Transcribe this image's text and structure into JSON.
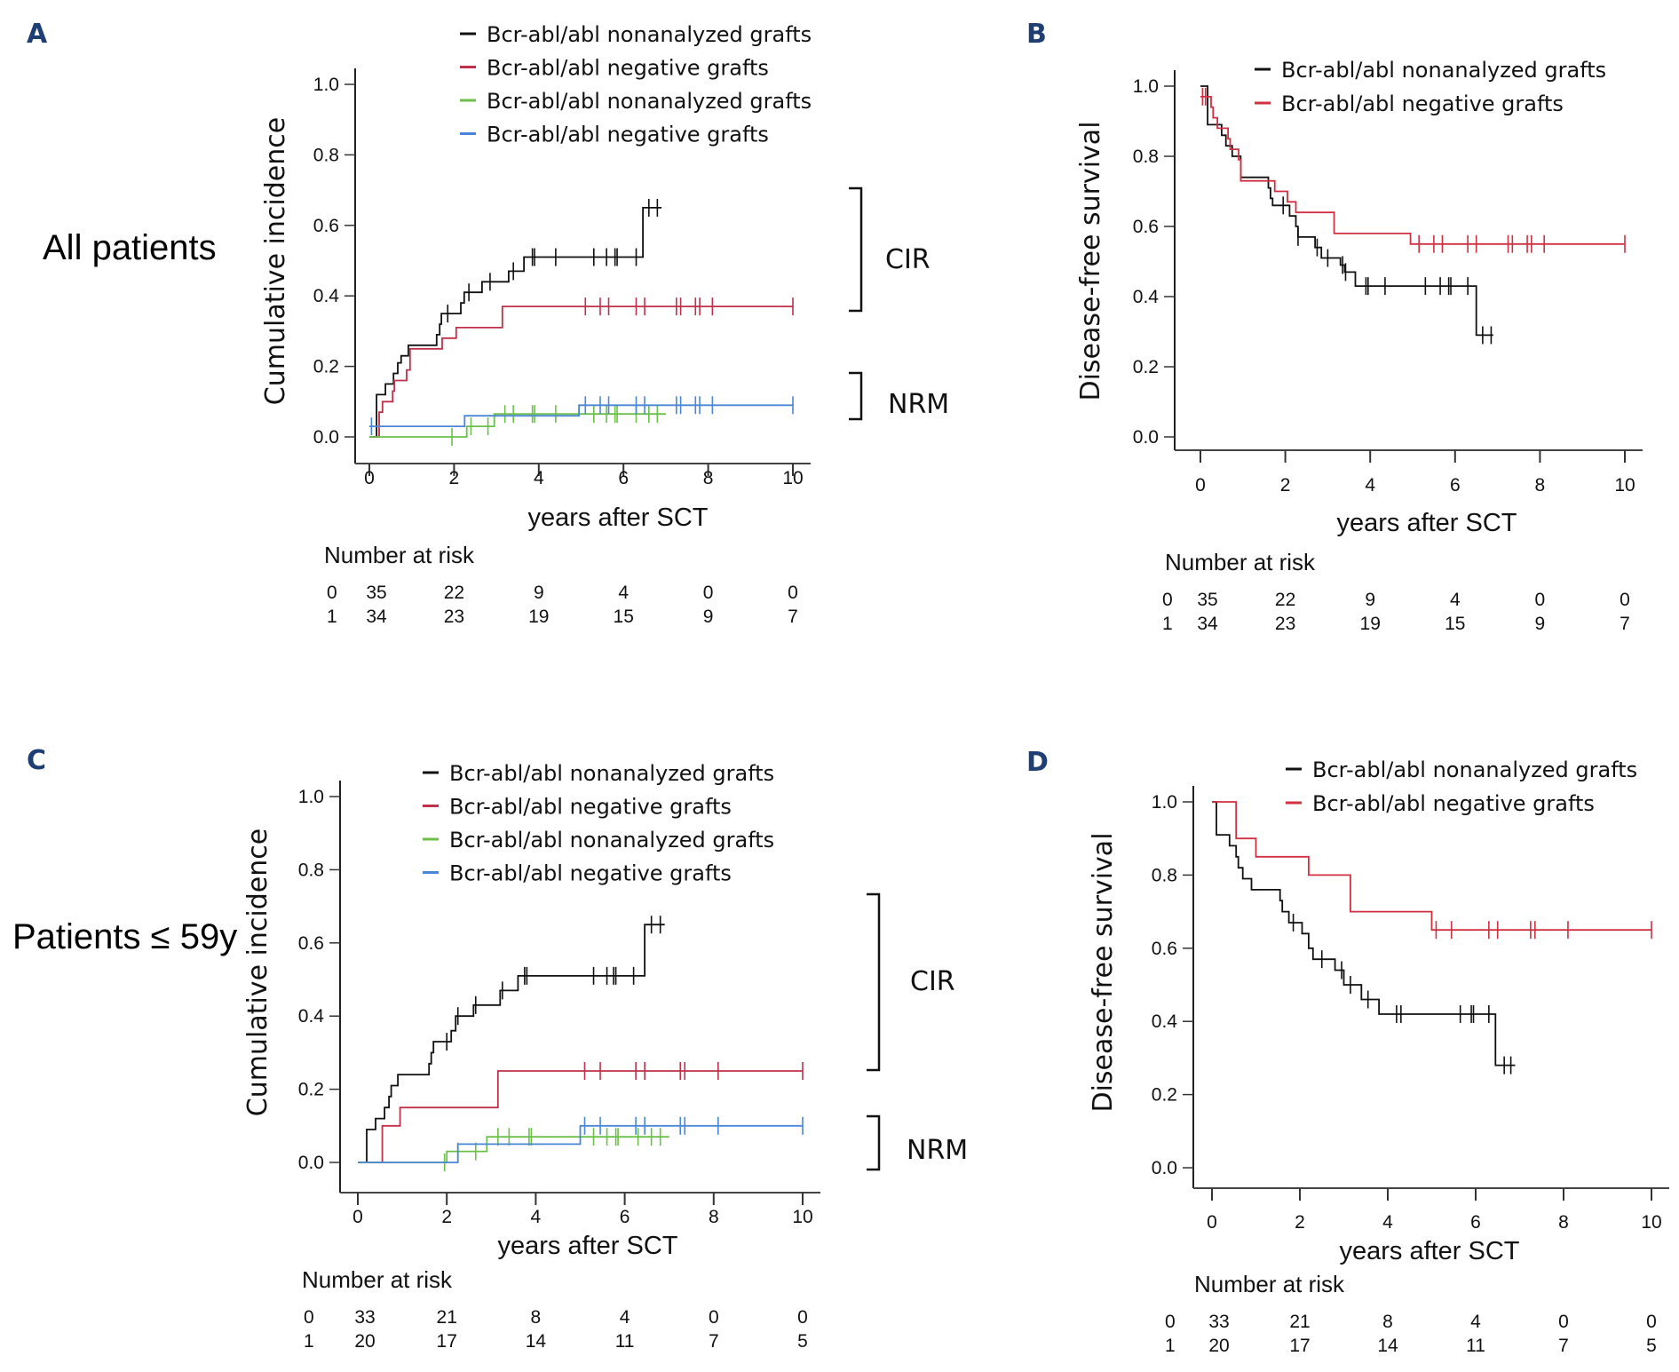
{
  "chart_data": [
    {
      "id": "A",
      "type": "line",
      "panel_letter": "A",
      "row_label": "All patients",
      "ylabel": "Cumulative incidence",
      "xlabel": "years after SCT",
      "xlim": [
        0,
        10
      ],
      "ylim": [
        0,
        1
      ],
      "xticks": [
        "0",
        "2",
        "4",
        "6",
        "8",
        "10"
      ],
      "yticks": [
        "0.0",
        "0.2",
        "0.4",
        "0.6",
        "0.8",
        "1.0"
      ],
      "legend": [
        {
          "label": "Bcr-abl/abl nonanalyzed grafts",
          "color": "#111111"
        },
        {
          "label": "Bcr-abl/abl negative grafts",
          "color": "#c0304a"
        },
        {
          "label": "Bcr-abl/abl nonanalyzed grafts",
          "color": "#6cc04a"
        },
        {
          "label": "Bcr-abl/abl negative grafts",
          "color": "#4a86d8"
        }
      ],
      "brackets": [
        {
          "label": "CIR",
          "y_range": [
            0.36,
            0.7
          ]
        },
        {
          "label": "NRM",
          "y_range": [
            0.05,
            0.18
          ]
        }
      ],
      "series": [
        {
          "name": "CIR nonanalyzed",
          "color": "#111111",
          "steps": [
            [
              0,
              0
            ],
            [
              0.17,
              0.12
            ],
            [
              0.38,
              0.15
            ],
            [
              0.57,
              0.18
            ],
            [
              0.67,
              0.21
            ],
            [
              0.75,
              0.23
            ],
            [
              0.92,
              0.26
            ],
            [
              1.59,
              0.29
            ],
            [
              1.66,
              0.32
            ],
            [
              1.7,
              0.35
            ],
            [
              2.16,
              0.38
            ],
            [
              2.24,
              0.41
            ],
            [
              2.66,
              0.44
            ],
            [
              3.29,
              0.47
            ],
            [
              3.65,
              0.51
            ],
            [
              6.46,
              0.65
            ]
          ],
          "end": 6.9,
          "censored": [
            1.85,
            2.35,
            2.85,
            3.4,
            3.85,
            3.9,
            4.4,
            5.3,
            5.6,
            5.8,
            5.85,
            6.3,
            6.6,
            6.8
          ]
        },
        {
          "name": "CIR negative",
          "color": "#c0304a",
          "steps": [
            [
              0,
              0
            ],
            [
              0.23,
              0.07
            ],
            [
              0.31,
              0.1
            ],
            [
              0.55,
              0.13
            ],
            [
              0.59,
              0.16
            ],
            [
              0.88,
              0.19
            ],
            [
              0.96,
              0.25
            ],
            [
              1.72,
              0.28
            ],
            [
              2.05,
              0.31
            ],
            [
              3.14,
              0.37
            ]
          ],
          "end": 10,
          "censored": [
            5.1,
            5.45,
            5.65,
            6.3,
            6.5,
            7.25,
            7.35,
            7.7,
            7.8,
            8.1,
            10
          ]
        },
        {
          "name": "NRM nonanalyzed",
          "color": "#6cc04a",
          "steps": [
            [
              0,
              0
            ],
            [
              2.3,
              0.03
            ],
            [
              2.95,
              0.065
            ]
          ],
          "end": 7.0,
          "censored": [
            1.95,
            2.4,
            2.8,
            3.2,
            3.4,
            3.85,
            3.9,
            4.4,
            5.3,
            5.6,
            5.8,
            5.85,
            6.3,
            6.6,
            6.8
          ]
        },
        {
          "name": "NRM negative",
          "color": "#4a86d8",
          "steps": [
            [
              0,
              0.03
            ],
            [
              2.25,
              0.06
            ],
            [
              4.95,
              0.09
            ]
          ],
          "end": 10,
          "censored": [
            0.05,
            5.1,
            5.45,
            5.65,
            6.3,
            6.5,
            7.25,
            7.35,
            7.7,
            7.8,
            8.1,
            10
          ]
        }
      ],
      "risk_table": {
        "title": "Number at risk",
        "rows": [
          {
            "group": "0",
            "values": [
              "35",
              "22",
              "9",
              "4",
              "0",
              "0"
            ]
          },
          {
            "group": "1",
            "values": [
              "34",
              "23",
              "19",
              "15",
              "9",
              "7"
            ]
          }
        ]
      }
    },
    {
      "id": "B",
      "type": "line",
      "panel_letter": "B",
      "ylabel": "Disease-free survival",
      "xlabel": "years after SCT",
      "xlim": [
        0,
        10
      ],
      "ylim": [
        0,
        1
      ],
      "xticks": [
        "0",
        "2",
        "4",
        "6",
        "8",
        "10"
      ],
      "yticks": [
        "0.0",
        "0.2",
        "0.4",
        "0.6",
        "0.8",
        "1.0"
      ],
      "legend": [
        {
          "label": "Bcr-abl/abl nonanalyzed grafts",
          "color": "#111111"
        },
        {
          "label": "Bcr-abl/abl negative grafts",
          "color": "#d03040"
        }
      ],
      "series": [
        {
          "name": "DFS nonanalyzed",
          "color": "#111111",
          "steps": [
            [
              0,
              1.0
            ],
            [
              0.1,
              1.0
            ],
            [
              0.17,
              0.89
            ],
            [
              0.5,
              0.86
            ],
            [
              0.6,
              0.83
            ],
            [
              0.75,
              0.8
            ],
            [
              0.95,
              0.74
            ],
            [
              1.6,
              0.71
            ],
            [
              1.65,
              0.68
            ],
            [
              1.7,
              0.66
            ],
            [
              2.1,
              0.63
            ],
            [
              2.25,
              0.6
            ],
            [
              2.3,
              0.57
            ],
            [
              2.7,
              0.54
            ],
            [
              2.85,
              0.51
            ],
            [
              3.3,
              0.49
            ],
            [
              3.4,
              0.47
            ],
            [
              3.65,
              0.43
            ],
            [
              6.5,
              0.29
            ]
          ],
          "end": 6.9,
          "censored": [
            1.95,
            2.3,
            2.75,
            3.0,
            3.35,
            3.42,
            3.9,
            3.95,
            4.35,
            5.3,
            5.65,
            5.85,
            5.9,
            6.3,
            6.65,
            6.85
          ]
        },
        {
          "name": "DFS negative",
          "color": "#d03040",
          "steps": [
            [
              0,
              0.97
            ],
            [
              0.25,
              0.94
            ],
            [
              0.3,
              0.91
            ],
            [
              0.4,
              0.88
            ],
            [
              0.65,
              0.85
            ],
            [
              0.7,
              0.82
            ],
            [
              0.9,
              0.79
            ],
            [
              0.95,
              0.73
            ],
            [
              1.75,
              0.7
            ],
            [
              2.05,
              0.67
            ],
            [
              2.25,
              0.64
            ],
            [
              3.15,
              0.58
            ],
            [
              4.95,
              0.55
            ]
          ],
          "end": 10,
          "censored": [
            0.05,
            0.12,
            5.15,
            5.5,
            5.7,
            6.3,
            6.5,
            7.25,
            7.35,
            7.7,
            7.8,
            8.1,
            10
          ]
        }
      ],
      "risk_table": {
        "title": "Number at risk",
        "rows": [
          {
            "group": "0",
            "values": [
              "35",
              "22",
              "9",
              "4",
              "0",
              "0"
            ]
          },
          {
            "group": "1",
            "values": [
              "34",
              "23",
              "19",
              "15",
              "9",
              "7"
            ]
          }
        ]
      }
    },
    {
      "id": "C",
      "type": "line",
      "panel_letter": "C",
      "row_label": "Patients ≤ 59y",
      "ylabel": "Cumulative incidence",
      "xlabel": "years after SCT",
      "xlim": [
        0,
        10
      ],
      "ylim": [
        0,
        1
      ],
      "xticks": [
        "0",
        "2",
        "4",
        "6",
        "8",
        "10"
      ],
      "yticks": [
        "0.0",
        "0.2",
        "0.4",
        "0.6",
        "0.8",
        "1.0"
      ],
      "legend": [
        {
          "label": "Bcr-abl/abl nonanalyzed grafts",
          "color": "#111111"
        },
        {
          "label": "Bcr-abl/abl negative grafts",
          "color": "#c0304a"
        },
        {
          "label": "Bcr-abl/abl nonanalyzed grafts",
          "color": "#6cc04a"
        },
        {
          "label": "Bcr-abl/abl negative grafts",
          "color": "#4a86d8"
        }
      ],
      "brackets": [
        {
          "label": "CIR",
          "y_range": [
            0.26,
            0.74
          ]
        },
        {
          "label": "NRM",
          "y_range": [
            0.0,
            0.13
          ]
        }
      ],
      "series": [
        {
          "name": "CIR nonanalyzed",
          "color": "#111111",
          "steps": [
            [
              0,
              0
            ],
            [
              0.2,
              0.09
            ],
            [
              0.4,
              0.12
            ],
            [
              0.6,
              0.15
            ],
            [
              0.7,
              0.18
            ],
            [
              0.75,
              0.21
            ],
            [
              0.9,
              0.24
            ],
            [
              1.6,
              0.27
            ],
            [
              1.65,
              0.3
            ],
            [
              1.7,
              0.33
            ],
            [
              2.1,
              0.36
            ],
            [
              2.2,
              0.4
            ],
            [
              2.6,
              0.43
            ],
            [
              3.2,
              0.47
            ],
            [
              3.6,
              0.51
            ],
            [
              6.45,
              0.65
            ]
          ],
          "end": 6.9,
          "censored": [
            2.0,
            2.25,
            2.65,
            3.25,
            3.75,
            3.8,
            5.3,
            5.6,
            5.75,
            5.8,
            6.2,
            6.6,
            6.8
          ]
        },
        {
          "name": "CIR negative",
          "color": "#c0304a",
          "steps": [
            [
              0,
              0
            ],
            [
              0.55,
              0.1
            ],
            [
              0.95,
              0.15
            ],
            [
              3.15,
              0.25
            ]
          ],
          "end": 10,
          "censored": [
            5.1,
            5.45,
            6.25,
            6.45,
            7.25,
            7.35,
            8.1,
            10
          ]
        },
        {
          "name": "NRM nonanalyzed",
          "color": "#6cc04a",
          "steps": [
            [
              0,
              0
            ],
            [
              2.0,
              0.03
            ],
            [
              2.9,
              0.07
            ]
          ],
          "end": 7.0,
          "censored": [
            1.95,
            2.25,
            2.65,
            3.15,
            3.4,
            3.85,
            3.9,
            5.3,
            5.6,
            5.8,
            5.85,
            6.3,
            6.6,
            6.8
          ]
        },
        {
          "name": "NRM negative",
          "color": "#4a86d8",
          "steps": [
            [
              0,
              0
            ],
            [
              2.25,
              0.05
            ],
            [
              5.0,
              0.1
            ]
          ],
          "end": 10,
          "censored": [
            5.1,
            5.45,
            6.25,
            6.45,
            7.25,
            7.35,
            8.1,
            10
          ]
        }
      ],
      "risk_table": {
        "title": "Number at risk",
        "rows": [
          {
            "group": "0",
            "values": [
              "33",
              "21",
              "8",
              "4",
              "0",
              "0"
            ]
          },
          {
            "group": "1",
            "values": [
              "20",
              "17",
              "14",
              "11",
              "7",
              "5"
            ]
          }
        ]
      }
    },
    {
      "id": "D",
      "type": "line",
      "panel_letter": "D",
      "ylabel": "Disease-free survival",
      "xlabel": "years after SCT",
      "xlim": [
        0,
        10
      ],
      "ylim": [
        0,
        1
      ],
      "xticks": [
        "0",
        "2",
        "4",
        "6",
        "8",
        "10"
      ],
      "yticks": [
        "0.0",
        "0.2",
        "0.4",
        "0.6",
        "0.8",
        "1.0"
      ],
      "legend": [
        {
          "label": "Bcr-abl/abl nonanalyzed grafts",
          "color": "#111111"
        },
        {
          "label": "Bcr-abl/abl negative grafts",
          "color": "#d03040"
        }
      ],
      "series": [
        {
          "name": "DFS nonanalyzed",
          "color": "#111111",
          "steps": [
            [
              0,
              1.0
            ],
            [
              0.1,
              0.91
            ],
            [
              0.4,
              0.88
            ],
            [
              0.55,
              0.85
            ],
            [
              0.6,
              0.82
            ],
            [
              0.7,
              0.79
            ],
            [
              0.9,
              0.76
            ],
            [
              1.55,
              0.73
            ],
            [
              1.6,
              0.7
            ],
            [
              1.75,
              0.67
            ],
            [
              2.05,
              0.64
            ],
            [
              2.2,
              0.6
            ],
            [
              2.3,
              0.57
            ],
            [
              2.8,
              0.54
            ],
            [
              3.0,
              0.5
            ],
            [
              3.4,
              0.46
            ],
            [
              3.8,
              0.42
            ],
            [
              6.45,
              0.28
            ]
          ],
          "end": 6.9,
          "censored": [
            1.85,
            2.5,
            2.95,
            3.15,
            3.55,
            4.2,
            4.3,
            5.65,
            5.9,
            5.95,
            6.3,
            6.65,
            6.8
          ]
        },
        {
          "name": "DFS negative",
          "color": "#d03040",
          "steps": [
            [
              0,
              1.0
            ],
            [
              0.55,
              0.9
            ],
            [
              1.0,
              0.85
            ],
            [
              2.2,
              0.8
            ],
            [
              3.15,
              0.7
            ],
            [
              5.0,
              0.65
            ]
          ],
          "end": 10,
          "censored": [
            5.1,
            5.45,
            6.3,
            6.5,
            7.25,
            7.35,
            8.1,
            10
          ]
        }
      ],
      "risk_table": {
        "title": "Number at risk",
        "rows": [
          {
            "group": "0",
            "values": [
              "33",
              "21",
              "8",
              "4",
              "0",
              "0"
            ]
          },
          {
            "group": "1",
            "values": [
              "20",
              "17",
              "14",
              "11",
              "7",
              "5"
            ]
          }
        ]
      }
    }
  ]
}
